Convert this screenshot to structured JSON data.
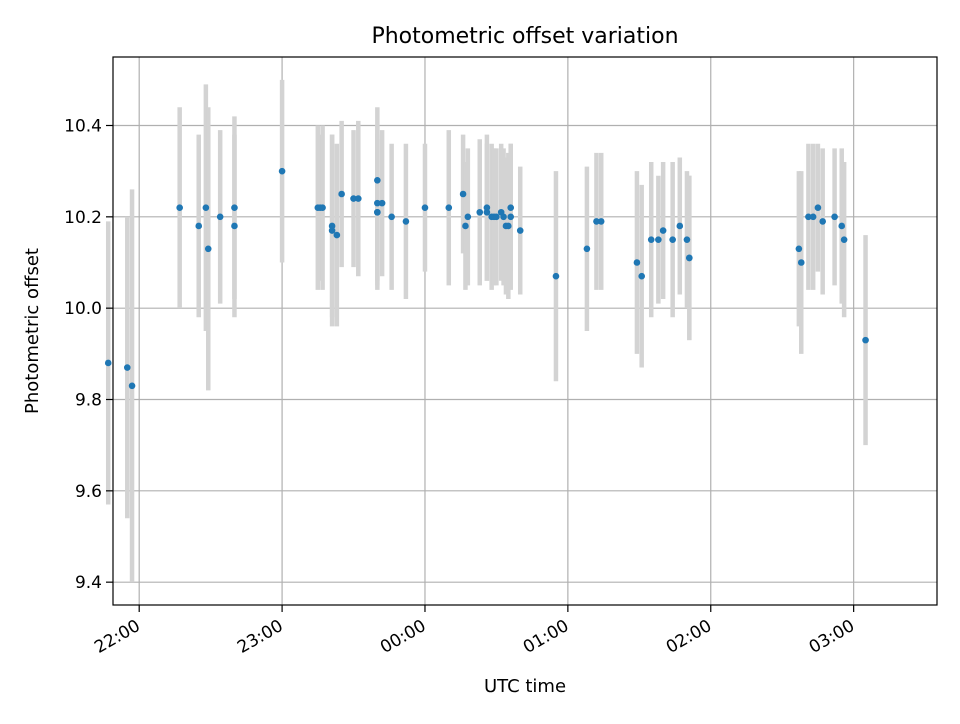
{
  "chart_data": {
    "type": "scatter",
    "title": "Photometric offset variation",
    "xlabel": "UTC time",
    "ylabel": "Photometric offset",
    "x_is_time": true,
    "xlim": [
      "21:49",
      "03:35"
    ],
    "ylim": [
      9.35,
      10.55
    ],
    "xticks": [
      "22:00",
      "23:00",
      "00:00",
      "01:00",
      "02:00",
      "03:00"
    ],
    "yticks": [
      "9.4",
      "9.6",
      "9.8",
      "10.0",
      "10.2",
      "10.4"
    ],
    "grid": true,
    "legend": "none",
    "colors": {
      "point": "#1f77b4",
      "errorbar": "#d3d3d3",
      "grid": "#b0b0b0"
    },
    "series": [
      {
        "x": [
          "21:47",
          "21:55",
          "21:57",
          "22:17",
          "22:25",
          "22:28",
          "22:29",
          "22:34",
          "22:40",
          "22:40",
          "23:00",
          "23:15",
          "23:16",
          "23:17",
          "23:21",
          "23:21",
          "23:23",
          "23:25",
          "23:30",
          "23:32",
          "23:40",
          "23:40",
          "23:40",
          "23:40",
          "23:42",
          "23:46",
          "23:52",
          "00:00",
          "00:10",
          "00:16",
          "00:17",
          "00:18",
          "00:23",
          "00:26",
          "00:26",
          "00:28",
          "00:29",
          "00:30",
          "00:32",
          "00:33",
          "00:34",
          "00:35",
          "00:36",
          "00:36",
          "00:40",
          "00:55",
          "01:08",
          "01:12",
          "01:14",
          "01:29",
          "01:31",
          "01:35",
          "01:38",
          "01:40",
          "01:44",
          "01:47",
          "01:50",
          "01:51",
          "01:51",
          "02:37",
          "02:38",
          "02:41",
          "02:43",
          "02:45",
          "02:47",
          "02:52",
          "02:55",
          "02:56",
          "03:05"
        ],
        "y": [
          9.88,
          9.87,
          9.83,
          10.22,
          10.18,
          10.22,
          10.13,
          10.2,
          10.22,
          10.18,
          10.3,
          10.22,
          10.22,
          10.22,
          10.17,
          10.18,
          10.16,
          10.25,
          10.24,
          10.24,
          10.23,
          10.21,
          10.21,
          10.28,
          10.23,
          10.2,
          10.19,
          10.22,
          10.22,
          10.25,
          10.18,
          10.2,
          10.21,
          10.21,
          10.22,
          10.2,
          10.2,
          10.2,
          10.21,
          10.2,
          10.18,
          10.18,
          10.22,
          10.2,
          10.17,
          10.07,
          10.13,
          10.19,
          10.19,
          10.1,
          10.07,
          10.15,
          10.15,
          10.17,
          10.15,
          10.18,
          10.15,
          10.11,
          10.11,
          10.13,
          10.1,
          10.2,
          10.2,
          10.22,
          10.19,
          10.2,
          10.18,
          10.15,
          9.93
        ],
        "yerr": [
          0.31,
          0.33,
          0.43,
          0.22,
          0.2,
          0.27,
          0.31,
          0.19,
          0.2,
          0.2,
          0.2,
          0.18,
          0.16,
          0.18,
          0.21,
          0.2,
          0.2,
          0.16,
          0.15,
          0.17,
          0.17,
          0.16,
          0.17,
          0.16,
          0.16,
          0.16,
          0.17,
          0.14,
          0.17,
          0.13,
          0.14,
          0.15,
          0.16,
          0.15,
          0.16,
          0.16,
          0.15,
          0.15,
          0.15,
          0.15,
          0.15,
          0.16,
          0.14,
          0.16,
          0.14,
          0.23,
          0.18,
          0.15,
          0.15,
          0.2,
          0.2,
          0.17,
          0.14,
          0.15,
          0.17,
          0.15,
          0.15,
          0.18,
          0.18,
          0.17,
          0.2,
          0.16,
          0.16,
          0.14,
          0.16,
          0.15,
          0.17,
          0.17,
          0.23
        ]
      }
    ]
  }
}
